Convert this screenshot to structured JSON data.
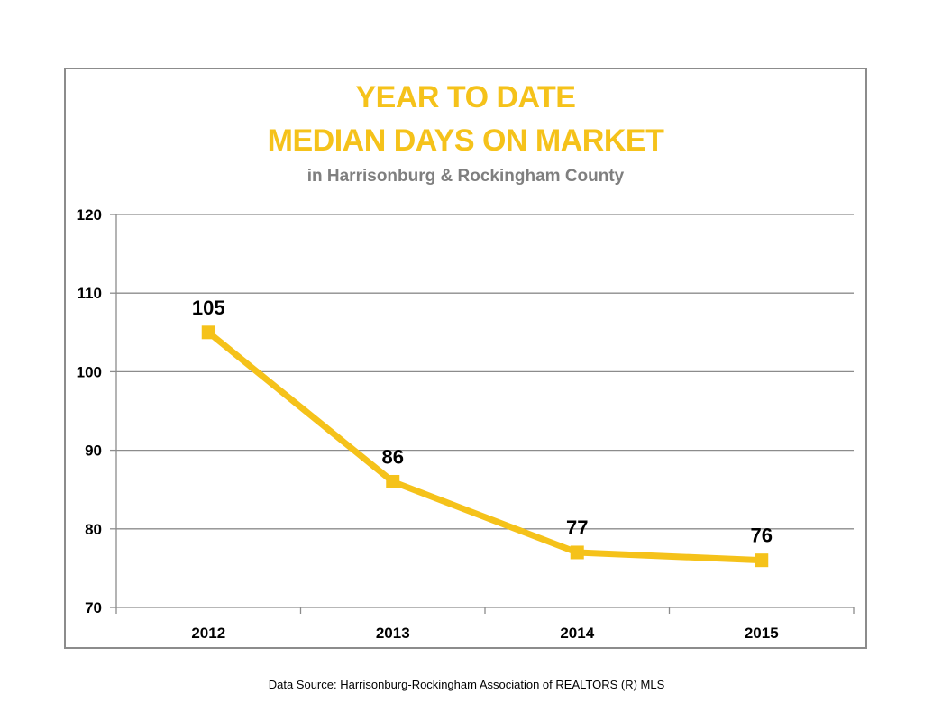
{
  "chart_data": {
    "type": "line",
    "title_line1": "YEAR TO DATE",
    "title_line2": "MEDIAN DAYS ON MARKET",
    "subtitle": "in Harrisonburg  & Rockingham County",
    "categories": [
      "2012",
      "2013",
      "2014",
      "2015"
    ],
    "series": [
      {
        "values": [
          105,
          86,
          77,
          76
        ],
        "color": "#f5c21a"
      }
    ],
    "data_labels": [
      "105",
      "86",
      "77",
      "76"
    ],
    "y_ticks": [
      70,
      80,
      90,
      100,
      110,
      120
    ],
    "ylim": [
      70,
      120
    ],
    "xlabel": "",
    "ylabel": "",
    "grid": true,
    "legend": "none"
  },
  "source_note": "Data Source: Harrisonburg-Rockingham Association of REALTORS (R) MLS"
}
